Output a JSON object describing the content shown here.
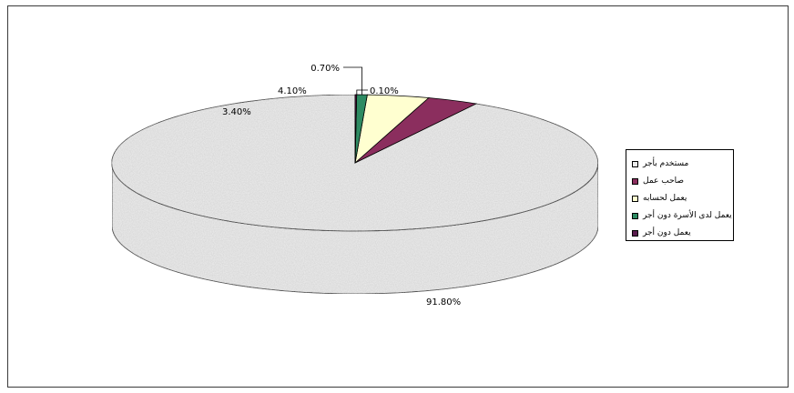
{
  "chart_data": {
    "type": "pie",
    "three_d": true,
    "categories": [
      "مستخدم بأجر",
      "صاحب عمل",
      "يعمل لحسابه",
      "يعمل لدى الأسرة دون أجر",
      "يعمل دون أجر"
    ],
    "values": [
      91.8,
      3.4,
      4.1,
      0.7,
      0.1
    ],
    "data_labels": [
      "91.80%",
      "3.40%",
      "4.10%",
      "0.70%",
      "0.10%"
    ],
    "colors": [
      "#ececec",
      "#8b2e5e",
      "#ffffd0",
      "#2e8b62",
      "#5a1c4e"
    ],
    "legend_position": "right",
    "title": ""
  }
}
